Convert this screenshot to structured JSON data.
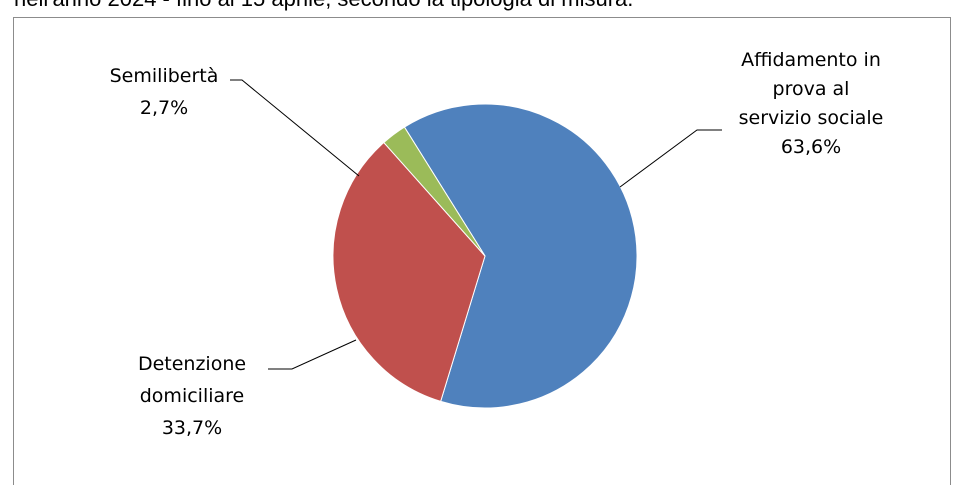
{
  "caption_partial": "nell'anno 2024 - fino al 15 aprile, secondo la tipologia di misura.",
  "chart_data": {
    "type": "pie",
    "title": "",
    "start_angle_deg": -32,
    "direction": "clockwise",
    "slices": [
      {
        "name": "Affidamento in prova al servizio sociale",
        "label_lines": [
          "Affidamento in",
          "prova al",
          "servizio sociale"
        ],
        "value": 63.6,
        "value_label": "63,6%",
        "color": "#4F81BD"
      },
      {
        "name": "Detenzione domiciliare",
        "label_lines": [
          "Detenzione",
          "domiciliare"
        ],
        "value": 33.7,
        "value_label": "33,7%",
        "color": "#C0504D"
      },
      {
        "name": "Semilibertà",
        "label_lines": [
          "Semilibertà"
        ],
        "value": 2.7,
        "value_label": "2,7%",
        "color": "#9BBB59"
      }
    ],
    "legend": "none"
  }
}
